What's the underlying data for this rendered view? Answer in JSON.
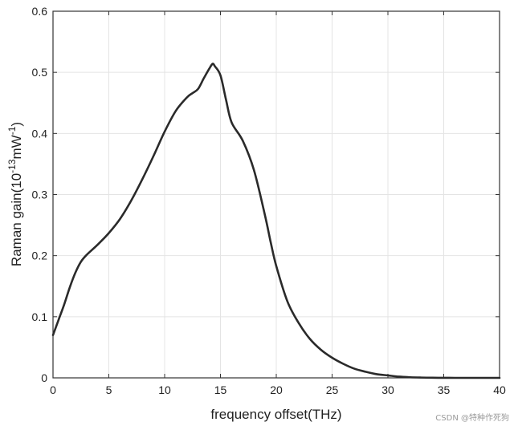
{
  "chart_data": {
    "type": "line",
    "xlabel": "frequency offset(THz)",
    "ylabel": {
      "prefix": "Raman gain(10",
      "exp1": "-13",
      "mid": "mW",
      "exp2": "-1",
      "suffix": ")"
    },
    "xlim": [
      0,
      40
    ],
    "ylim": [
      0,
      0.6
    ],
    "xticks": [
      0,
      5,
      10,
      15,
      20,
      25,
      30,
      35,
      40
    ],
    "xtick_labels": [
      "0",
      "5",
      "10",
      "15",
      "20",
      "25",
      "30",
      "35",
      "40"
    ],
    "yticks": [
      0,
      0.1,
      0.2,
      0.3,
      0.4,
      0.5,
      0.6
    ],
    "ytick_labels": [
      "0",
      "0.1",
      "0.2",
      "0.3",
      "0.4",
      "0.5",
      "0.6"
    ],
    "grid": true,
    "line_color": "#2a2a2a",
    "series": [
      {
        "x": [
          0,
          0.5,
          1,
          1.5,
          2,
          2.5,
          3,
          4,
          5,
          6,
          7,
          8,
          9,
          10,
          11,
          12,
          12.5,
          13,
          13.5,
          14,
          14.3,
          14.5,
          15,
          15.5,
          16,
          17,
          18,
          19,
          19.5,
          20,
          21,
          22,
          23,
          24,
          25,
          26,
          27,
          28,
          29,
          30,
          31,
          32,
          33,
          34,
          35,
          36,
          37,
          38,
          39,
          40
        ],
        "y": [
          0.07,
          0.095,
          0.12,
          0.148,
          0.172,
          0.19,
          0.201,
          0.218,
          0.237,
          0.26,
          0.29,
          0.325,
          0.363,
          0.403,
          0.437,
          0.459,
          0.466,
          0.473,
          0.49,
          0.506,
          0.514,
          0.51,
          0.495,
          0.455,
          0.418,
          0.388,
          0.34,
          0.265,
          0.222,
          0.183,
          0.125,
          0.09,
          0.064,
          0.046,
          0.033,
          0.023,
          0.015,
          0.01,
          0.006,
          0.004,
          0.002,
          0.001,
          0.0005,
          0.0002,
          0.0001,
          0,
          0,
          0,
          0,
          0
        ]
      }
    ]
  },
  "watermark": "CSDN @特种作死狗"
}
